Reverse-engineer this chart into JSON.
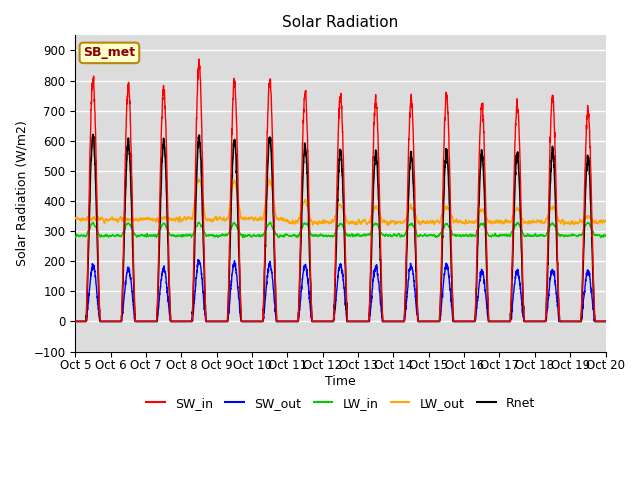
{
  "title": "Solar Radiation",
  "xlabel": "Time",
  "ylabel": "Solar Radiation (W/m2)",
  "ylim": [
    -100,
    950
  ],
  "n_days": 15,
  "background_color": "#dcdcdc",
  "plot_bg_color": "#dcdcdc",
  "grid_color": "white",
  "colors": {
    "SW_in": "#ff0000",
    "SW_out": "#0000ff",
    "LW_in": "#00cc00",
    "LW_out": "#ffa500",
    "Rnet": "#000000"
  },
  "xtick_labels": [
    "Oct 5",
    "Oct 6",
    "Oct 7",
    "Oct 8",
    "Oct 9",
    "Oct 10",
    "Oct 11",
    "Oct 12",
    "Oct 13",
    "Oct 14",
    "Oct 15",
    "Oct 16",
    "Oct 17",
    "Oct 18",
    "Oct 19",
    "Oct 20"
  ],
  "legend_label": "SB_met",
  "SW_in_peaks": [
    800,
    780,
    770,
    850,
    795,
    800,
    755,
    750,
    735,
    735,
    750,
    720,
    720,
    740,
    700
  ],
  "SW_out_peaks": [
    185,
    175,
    175,
    200,
    190,
    190,
    185,
    185,
    180,
    185,
    185,
    165,
    165,
    170,
    165
  ],
  "Rnet_peaks": [
    615,
    595,
    595,
    610,
    600,
    610,
    575,
    565,
    555,
    555,
    560,
    550,
    555,
    565,
    545
  ],
  "LW_in_base": 285,
  "LW_out_base_day": [
    340,
    340,
    340,
    470,
    465,
    470,
    395,
    390,
    380,
    380,
    380,
    370,
    370,
    380,
    350
  ],
  "LW_out_base_night": [
    340,
    340,
    340,
    340,
    340,
    340,
    330,
    330,
    330,
    330,
    330,
    330,
    330,
    330,
    330
  ],
  "pts_per_day": 200
}
